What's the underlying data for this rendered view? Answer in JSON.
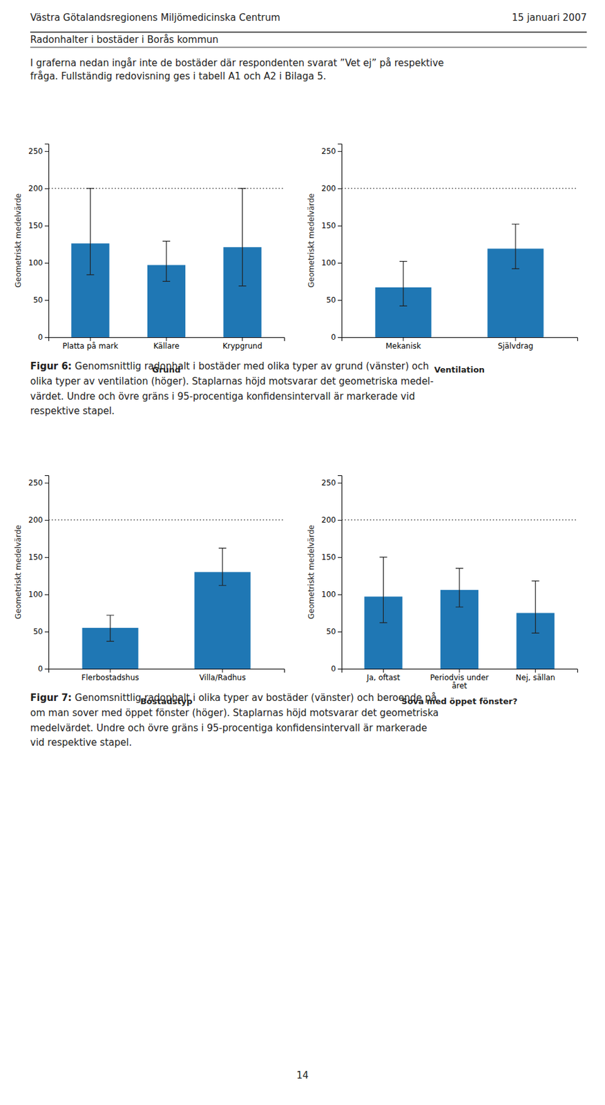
{
  "annotations": {
    "header_left": "Västra Götalandsregionens Miljömedicinska Centrum",
    "header_right": "15 januari 2007",
    "subheader": "Radonhalter i bostäder i Borås kommun",
    "intro": [
      "I graferna nedan ingår inte de bostäder där respondenten svarat ”Vet ej” på respektive",
      "fråga. Fullständig redovisning ges i tabell A1 och A2 i Bilaga 5."
    ],
    "captions": [
      {
        "label": "Figur 6:",
        "lines": [
          "Genomsnittlig radonhalt i bostäder med olika typer av grund (vänster) och",
          "olika typer av ventilation (höger). Staplarnas höjd motsvarar det geometriska medel-",
          "värdet. Undre och övre gräns i 95-procentiga konfidensintervall är markerade vid",
          "respektive stapel."
        ]
      },
      {
        "label": "Figur 7:",
        "lines": [
          "Genomsnittlig radonhalt i olika typer av bostäder (vänster) och beroende på",
          "om man sover med öppet fönster (höger). Staplarnas höjd motsvarar det geometriska",
          "medelvärdet. Undre och övre gräns i 95-procentiga konfidensintervall är markerade",
          "vid respektive stapel."
        ]
      }
    ],
    "page_number": "14"
  },
  "chart_data": [
    {
      "type": "bar",
      "categories": [
        "Platta på mark",
        "Källare",
        "Krypgrund"
      ],
      "values": [
        126,
        97,
        121
      ],
      "yerr_lower": [
        42,
        22,
        52
      ],
      "yerr_upper": [
        74,
        32,
        79
      ],
      "xlabel": "Grund",
      "ylabel": "Geometriskt medelvärde",
      "ylim": [
        0,
        260
      ],
      "yticks": [
        0,
        50,
        100,
        150,
        200,
        250
      ],
      "reference_line": 200,
      "grid": false
    },
    {
      "type": "bar",
      "categories": [
        "Mekanisk",
        "Självdrag"
      ],
      "values": [
        67,
        119
      ],
      "yerr_lower": [
        25,
        27
      ],
      "yerr_upper": [
        35,
        33
      ],
      "xlabel": "Ventilation",
      "ylabel": "Geometriskt medelvärde",
      "ylim": [
        0,
        260
      ],
      "yticks": [
        0,
        50,
        100,
        150,
        200,
        250
      ],
      "reference_line": 200,
      "grid": false
    },
    {
      "type": "bar",
      "categories": [
        "Flerbostadshus",
        "Villa/Radhus"
      ],
      "values": [
        55,
        130
      ],
      "yerr_lower": [
        18,
        18
      ],
      "yerr_upper": [
        17,
        32
      ],
      "xlabel": "Bostadstyp",
      "ylabel": "Geometriskt medelvärde",
      "ylim": [
        0,
        260
      ],
      "yticks": [
        0,
        50,
        100,
        150,
        200,
        250
      ],
      "reference_line": 200,
      "grid": false
    },
    {
      "type": "bar",
      "categories": [
        "Ja, oftast",
        "Periodvis under\nåret",
        "Nej, sällan"
      ],
      "values": [
        97,
        106,
        75
      ],
      "yerr_lower": [
        35,
        23,
        27
      ],
      "yerr_upper": [
        53,
        29,
        43
      ],
      "xlabel": "Sova med öppet fönster?",
      "ylabel": "Geometriskt medelvärde",
      "ylim": [
        0,
        260
      ],
      "yticks": [
        0,
        50,
        100,
        150,
        200,
        250
      ],
      "reference_line": 200,
      "grid": false
    }
  ]
}
